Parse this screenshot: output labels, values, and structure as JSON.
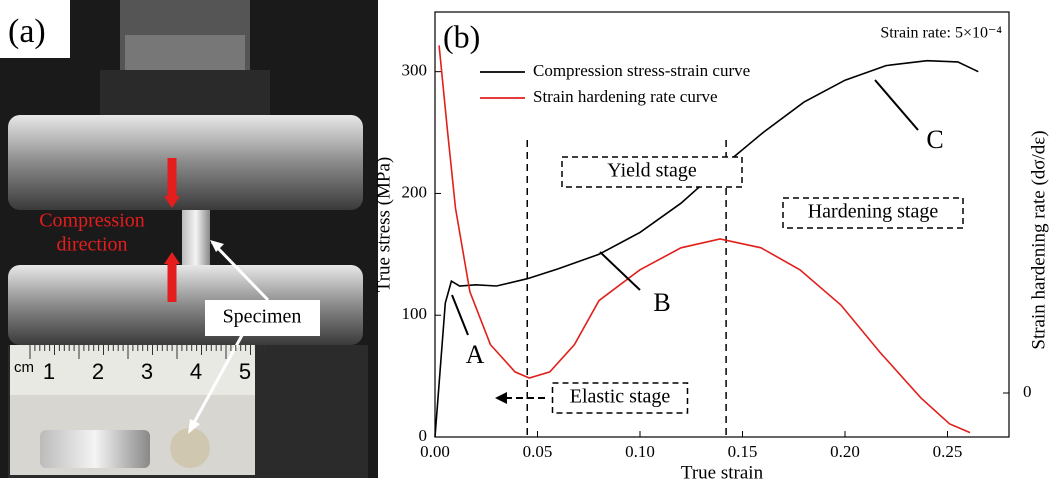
{
  "panel_a": {
    "label": "(a)",
    "arrow_label_line1": "Compression",
    "arrow_label_line2": "direction",
    "specimen_label": "Specimen",
    "ruler_unit": "cm",
    "ruler_numbers": [
      "1",
      "2",
      "3",
      "4",
      "5"
    ]
  },
  "chart_data": {
    "type": "line",
    "panel_label": "(b)",
    "annotation": "Strain rate: 5×10⁻⁴",
    "xlabel": "True strain",
    "ylabel": "True stress (MPa)",
    "y2label": "Strain hardening rate (dσ/dε)",
    "xlim": [
      0,
      0.28
    ],
    "xticks": [
      "0.00",
      "0.05",
      "0.10",
      "0.15",
      "0.20",
      "0.25"
    ],
    "ylim": [
      0,
      349
    ],
    "yticks": [
      0,
      100,
      200,
      300
    ],
    "y2lim": [
      -1,
      8.66
    ],
    "y2ticks": [
      0
    ],
    "vlines": [
      0.045,
      0.142
    ],
    "stage_labels": [
      "Yield stage",
      "Hardening stage",
      "Elastic stage"
    ],
    "point_labels": [
      "A",
      "B",
      "C"
    ],
    "series": [
      {
        "name": "Compression stress-strain curve",
        "color": "#000000",
        "x": [
          0,
          0.005,
          0.008,
          0.012,
          0.02,
          0.03,
          0.045,
          0.06,
          0.08,
          0.1,
          0.12,
          0.14,
          0.16,
          0.18,
          0.2,
          0.22,
          0.24,
          0.255,
          0.265
        ],
        "values": [
          0,
          110,
          128,
          124,
          125,
          124,
          130,
          138,
          150,
          168,
          192,
          222,
          250,
          275,
          293,
          305,
          309,
          308,
          300
        ]
      },
      {
        "name": "Strain hardening rate curve",
        "color": "#e0201b",
        "axis": "y2",
        "x": [
          0.002,
          0.006,
          0.01,
          0.017,
          0.027,
          0.039,
          0.046,
          0.056,
          0.068,
          0.08,
          0.1,
          0.12,
          0.139,
          0.159,
          0.178,
          0.198,
          0.217,
          0.237,
          0.251,
          0.261
        ],
        "values": [
          7.9,
          6.0,
          4.2,
          2.3,
          1.1,
          0.48,
          0.34,
          0.48,
          1.1,
          2.1,
          2.8,
          3.3,
          3.5,
          3.3,
          2.8,
          2.0,
          0.93,
          -0.11,
          -0.7,
          -0.9
        ]
      }
    ]
  }
}
